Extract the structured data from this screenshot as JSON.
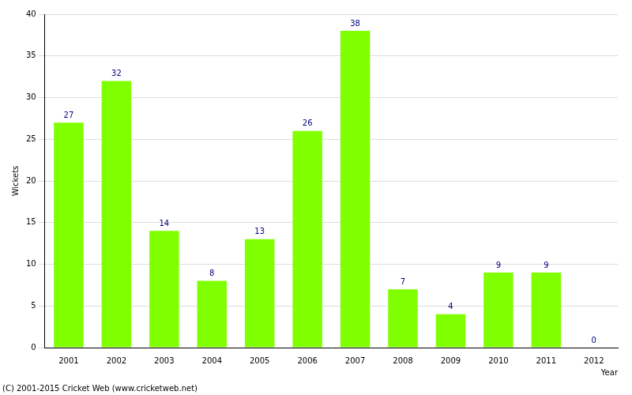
{
  "chart_data": {
    "type": "bar",
    "categories": [
      "2001",
      "2002",
      "2003",
      "2004",
      "2005",
      "2006",
      "2007",
      "2008",
      "2009",
      "2010",
      "2011",
      "2012"
    ],
    "values": [
      27,
      32,
      14,
      8,
      13,
      26,
      38,
      7,
      4,
      9,
      9,
      0
    ],
    "color": "#7fff00",
    "y_label": "Wickets",
    "x_label": "Year",
    "ylim": [
      0,
      40
    ],
    "yticks": [
      0,
      5,
      10,
      15,
      20,
      25,
      30,
      35,
      40
    ],
    "grid": true,
    "data_labels": true,
    "annotations": [
      "(C) 2001-2015 Cricket Web (www.cricketweb.net)"
    ]
  }
}
